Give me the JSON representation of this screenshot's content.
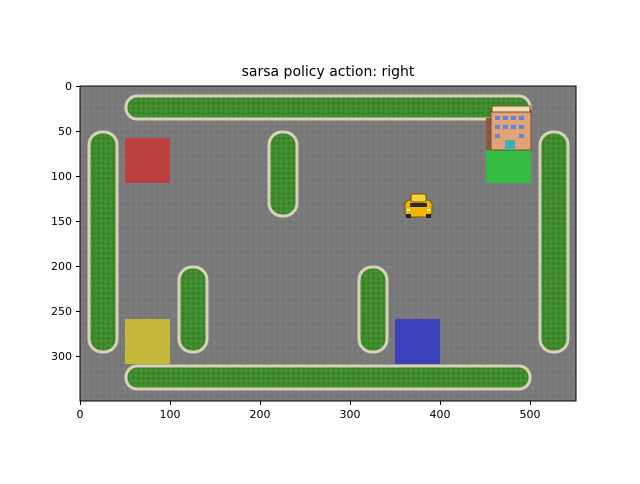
{
  "figure": {
    "title": "sarsa policy action: right"
  },
  "axes": {
    "x_ticks": [
      "0",
      "100",
      "200",
      "300",
      "400",
      "500"
    ],
    "y_ticks": [
      "0",
      "50",
      "100",
      "150",
      "200",
      "250",
      "300"
    ],
    "x_range": [
      0,
      550
    ],
    "y_range": [
      350,
      0
    ],
    "grid": false
  },
  "game": {
    "name": "Taxi",
    "policy": "sarsa",
    "action": "right",
    "colors": {
      "road": "#7a7a7a",
      "hedge": "#3f8a2e",
      "hedge_border": "#d8d3b8",
      "red_stop": "#c33a3a",
      "green_stop": "#2fbf3f",
      "yellow_stop": "#c8bd38",
      "blue_stop": "#3a3fbf",
      "taxi": "#f2b705"
    },
    "icons": [
      "taxi-icon",
      "hotel-building-icon"
    ]
  }
}
